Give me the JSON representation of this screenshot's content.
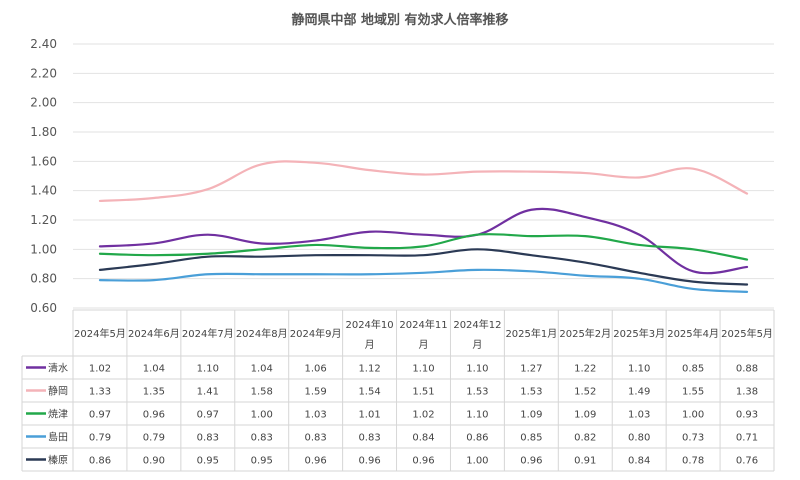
{
  "chart_data": {
    "type": "line",
    "title": "静岡県中部 地域別 有効求人倍率推移",
    "ylim": [
      0.6,
      2.4
    ],
    "yticks": [
      "2.40",
      "2.20",
      "2.00",
      "1.80",
      "1.60",
      "1.40",
      "1.20",
      "1.00",
      "0.80",
      "0.60"
    ],
    "grid": true,
    "legend": "data-table",
    "categories": [
      [
        "2024年5月"
      ],
      [
        "2024年6月"
      ],
      [
        "2024年7月"
      ],
      [
        "2024年8月"
      ],
      [
        "2024年9月"
      ],
      [
        "2024年10",
        "月"
      ],
      [
        "2024年11",
        "月"
      ],
      [
        "2024年12",
        "月"
      ],
      [
        "2025年1月"
      ],
      [
        "2025年2月"
      ],
      [
        "2025年3月"
      ],
      [
        "2025年4月"
      ],
      [
        "2025年5月"
      ]
    ],
    "series": [
      {
        "name": "清水",
        "color": "#7030a0",
        "values": [
          1.02,
          1.04,
          1.1,
          1.04,
          1.06,
          1.12,
          1.1,
          1.1,
          1.27,
          1.22,
          1.1,
          0.85,
          0.88
        ]
      },
      {
        "name": "静岡",
        "color": "#f4b3b8",
        "values": [
          1.33,
          1.35,
          1.41,
          1.58,
          1.59,
          1.54,
          1.51,
          1.53,
          1.53,
          1.52,
          1.49,
          1.55,
          1.38
        ]
      },
      {
        "name": "焼津",
        "color": "#22a84a",
        "values": [
          0.97,
          0.96,
          0.97,
          1.0,
          1.03,
          1.01,
          1.02,
          1.1,
          1.09,
          1.09,
          1.03,
          1.0,
          0.93
        ]
      },
      {
        "name": "島田",
        "color": "#4a9fd8",
        "values": [
          0.79,
          0.79,
          0.83,
          0.83,
          0.83,
          0.83,
          0.84,
          0.86,
          0.85,
          0.82,
          0.8,
          0.73,
          0.71
        ]
      },
      {
        "name": "榛原",
        "color": "#2b3a55",
        "values": [
          0.86,
          0.9,
          0.95,
          0.95,
          0.96,
          0.96,
          0.96,
          1.0,
          0.96,
          0.91,
          0.84,
          0.78,
          0.76
        ]
      }
    ]
  }
}
